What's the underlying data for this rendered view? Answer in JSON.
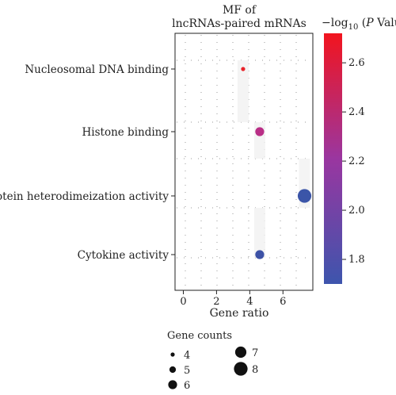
{
  "chart_data": {
    "type": "scatter",
    "title": "MF of lncRNAs-paired mRNAs",
    "xlabel": "Gene ratio",
    "ylabel": "",
    "xlim": [
      -0.5,
      7.8
    ],
    "xticks": [
      0,
      2,
      4,
      6
    ],
    "categories": [
      "Nucleosomal DNA binding",
      "Histone binding",
      "Protein heterodimeization activity",
      "Cytokine activity"
    ],
    "points": [
      {
        "term": "Nucleosomal DNA binding",
        "gene_ratio": 3.6,
        "neg_log10_p": 2.7,
        "gene_count": 4,
        "color": "#e8232a"
      },
      {
        "term": "Histone binding",
        "gene_ratio": 4.6,
        "neg_log10_p": 2.25,
        "gene_count": 6,
        "color": "#b92e86"
      },
      {
        "term": "Protein heterodimeization activity",
        "gene_ratio": 7.3,
        "neg_log10_p": 1.78,
        "gene_count": 8,
        "color": "#3b55a8"
      },
      {
        "term": "Cytokine activity",
        "gene_ratio": 4.6,
        "neg_log10_p": 1.8,
        "gene_count": 6,
        "color": "#3d52a6"
      }
    ],
    "colorbar": {
      "title_prefix": "−log",
      "title_sub": "10",
      "title_paren_open": " (",
      "title_p": "P",
      "title_rest": " Value)",
      "min": 1.7,
      "max": 2.72,
      "ticks": [
        1.8,
        2.0,
        2.2,
        2.4,
        2.6
      ],
      "tick_labels": [
        "1.8",
        "2.0",
        "2.2",
        "2.4",
        "2.6"
      ],
      "color_low": "#3d55ad",
      "color_high": "#f2141e"
    },
    "size_legend": {
      "title": "Gene counts",
      "entries": [
        {
          "label": "4",
          "count": 4
        },
        {
          "label": "5",
          "count": 5
        },
        {
          "label": "6",
          "count": 6
        },
        {
          "label": "7",
          "count": 7
        },
        {
          "label": "8",
          "count": 8
        }
      ]
    },
    "grid": true,
    "grid_style": "dotted"
  }
}
